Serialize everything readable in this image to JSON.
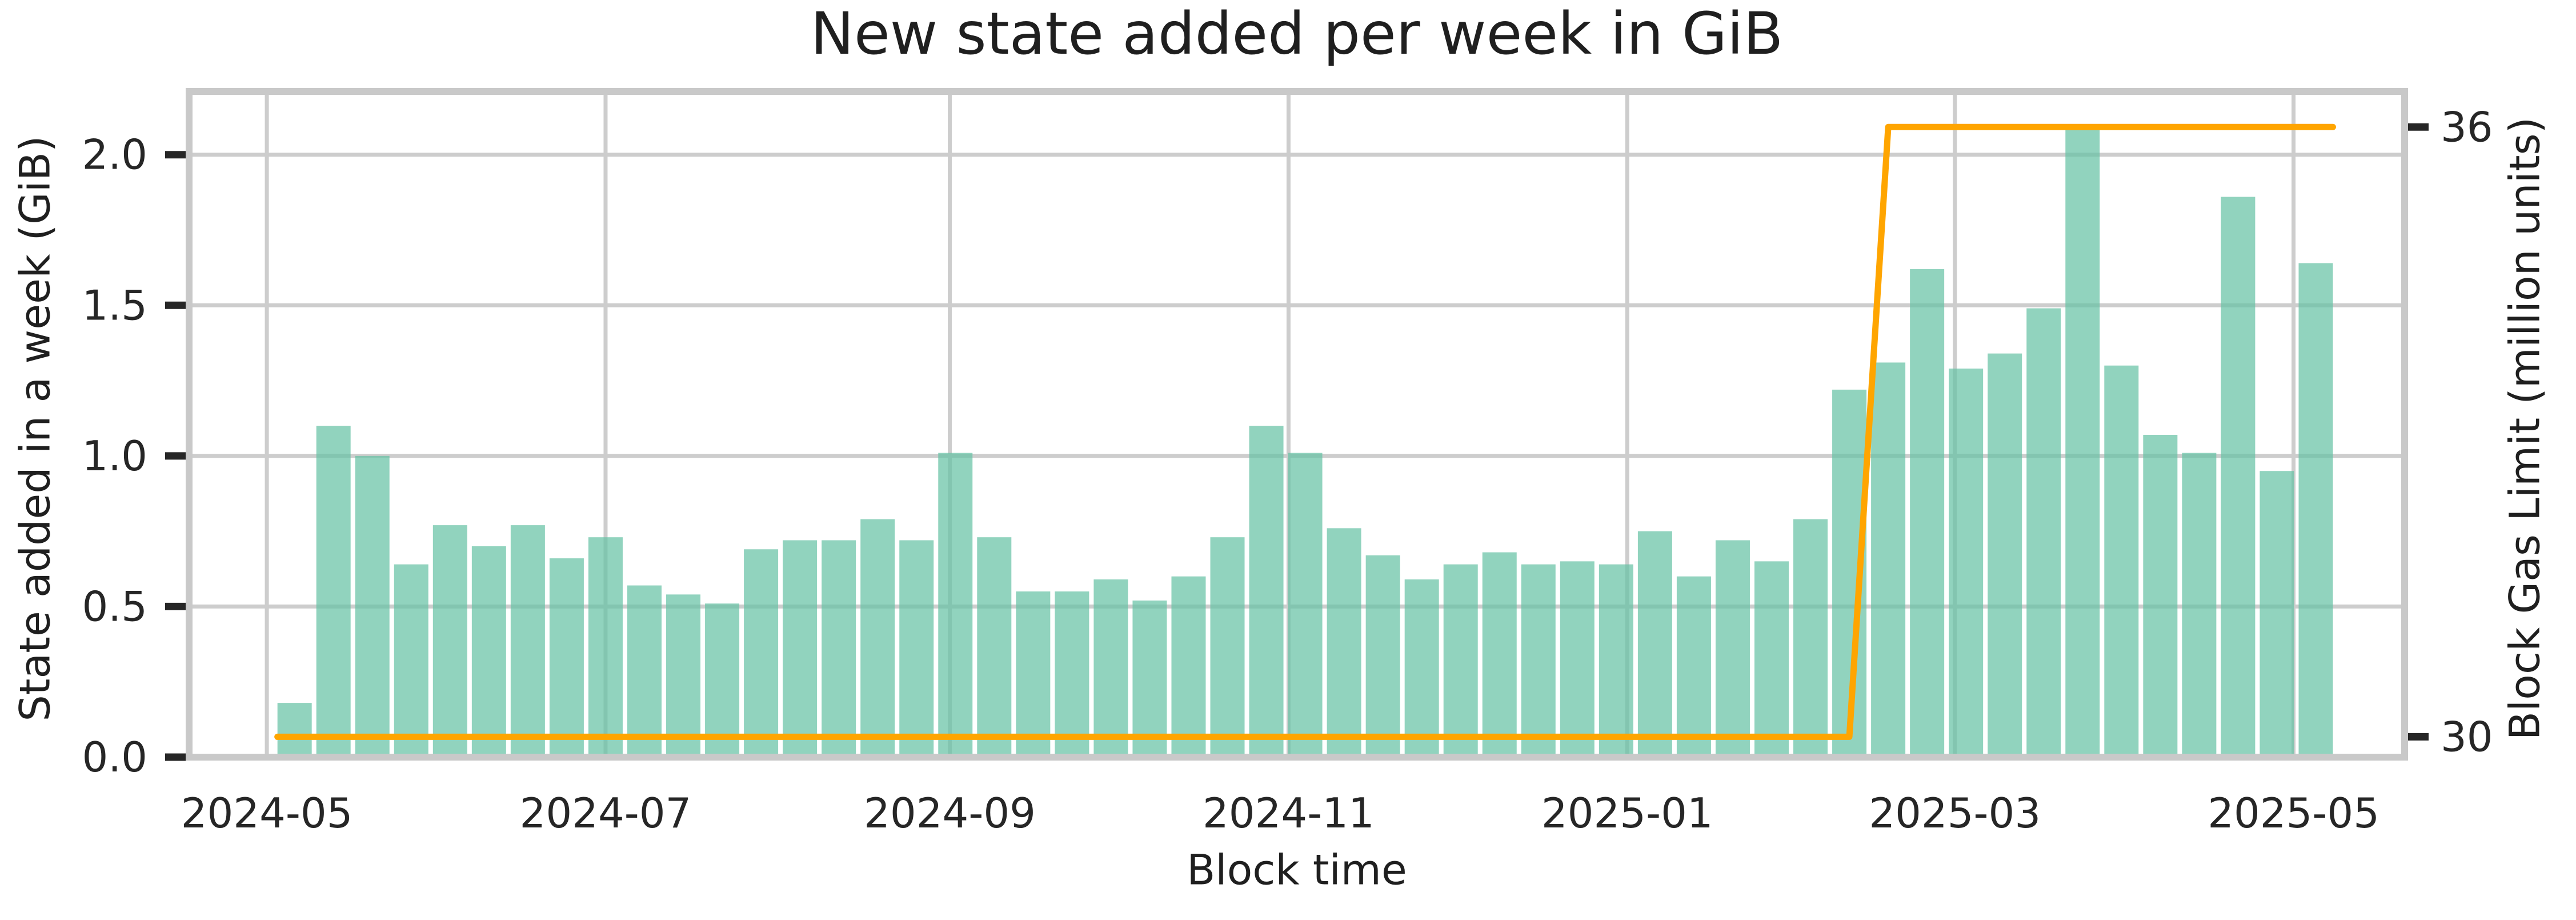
{
  "chart_data": {
    "type": "bar",
    "title": "New state added per week in GiB",
    "xlabel": "Block time",
    "ylabel_left": "State added in a week (GiB)",
    "ylabel_right": "Block Gas Limit (million units)",
    "grid": true,
    "legend": "none",
    "x_tick_labels": [
      "2024-05",
      "2024-07",
      "2024-09",
      "2024-11",
      "2025-01",
      "2025-03",
      "2025-05"
    ],
    "x_tick_dates": [
      "2024-05-01",
      "2024-07-01",
      "2024-09-01",
      "2024-11-01",
      "2025-01-01",
      "2025-03-01",
      "2025-05-01"
    ],
    "x_domain": [
      "2024-04-17",
      "2025-05-21"
    ],
    "y_left": {
      "tick_labels": [
        "0.0",
        "0.5",
        "1.0",
        "1.5",
        "2.0"
      ],
      "ticks": [
        0.0,
        0.5,
        1.0,
        1.5,
        2.0
      ],
      "lim": [
        0,
        2.21
      ]
    },
    "y_right": {
      "tick_labels": [
        "36",
        "30"
      ],
      "ticks": [
        36,
        30
      ],
      "lim": [
        29.8,
        36.35
      ]
    },
    "series": [
      {
        "name": "State added in a week (GiB)",
        "type": "bar",
        "axis": "left"
      },
      {
        "name": "Block Gas Limit (million units)",
        "type": "line",
        "axis": "right"
      }
    ],
    "weeks": [
      "2024-05-06",
      "2024-05-13",
      "2024-05-20",
      "2024-05-27",
      "2024-06-03",
      "2024-06-10",
      "2024-06-17",
      "2024-06-24",
      "2024-07-01",
      "2024-07-08",
      "2024-07-15",
      "2024-07-22",
      "2024-07-29",
      "2024-08-05",
      "2024-08-12",
      "2024-08-19",
      "2024-08-26",
      "2024-09-02",
      "2024-09-09",
      "2024-09-16",
      "2024-09-23",
      "2024-09-30",
      "2024-10-07",
      "2024-10-14",
      "2024-10-21",
      "2024-10-28",
      "2024-11-04",
      "2024-11-11",
      "2024-11-18",
      "2024-11-25",
      "2024-12-02",
      "2024-12-09",
      "2024-12-16",
      "2024-12-23",
      "2024-12-30",
      "2025-01-06",
      "2025-01-13",
      "2025-01-20",
      "2025-01-27",
      "2025-02-03",
      "2025-02-10",
      "2025-02-17",
      "2025-02-24",
      "2025-03-03",
      "2025-03-10",
      "2025-03-17",
      "2025-03-24",
      "2025-03-31",
      "2025-04-07",
      "2025-04-14",
      "2025-04-21",
      "2025-04-28",
      "2025-05-05"
    ],
    "state_added_gib": [
      0.18,
      1.1,
      1.0,
      0.64,
      0.77,
      0.7,
      0.77,
      0.66,
      0.73,
      0.57,
      0.54,
      0.51,
      0.69,
      0.72,
      0.72,
      0.79,
      0.72,
      1.01,
      0.73,
      0.55,
      0.55,
      0.59,
      0.52,
      0.6,
      0.73,
      1.1,
      1.01,
      0.76,
      0.67,
      0.59,
      0.64,
      0.68,
      0.64,
      0.65,
      0.64,
      0.75,
      0.6,
      0.72,
      0.65,
      0.79,
      1.22,
      1.31,
      1.62,
      1.29,
      1.34,
      1.49,
      2.09,
      1.3,
      1.07,
      1.01,
      1.86,
      0.95,
      1.64
    ],
    "gas_limit_million": [
      30,
      30,
      30,
      30,
      30,
      30,
      30,
      30,
      30,
      30,
      30,
      30,
      30,
      30,
      30,
      30,
      30,
      30,
      30,
      30,
      30,
      30,
      30,
      30,
      30,
      30,
      30,
      30,
      30,
      30,
      30,
      30,
      30,
      30,
      30,
      30,
      30,
      30,
      30,
      30,
      30,
      36,
      36,
      36,
      36,
      36,
      36,
      36,
      36,
      36,
      36,
      36,
      36
    ],
    "colors": {
      "bar_fill": "#66c2a5",
      "bar_alpha": 0.72,
      "gas_line": "#ffa500",
      "grid": "#cdcdcd",
      "spine": "#c9c9c9",
      "tick_mark": "#262626",
      "text": "#1f1f1f"
    }
  }
}
